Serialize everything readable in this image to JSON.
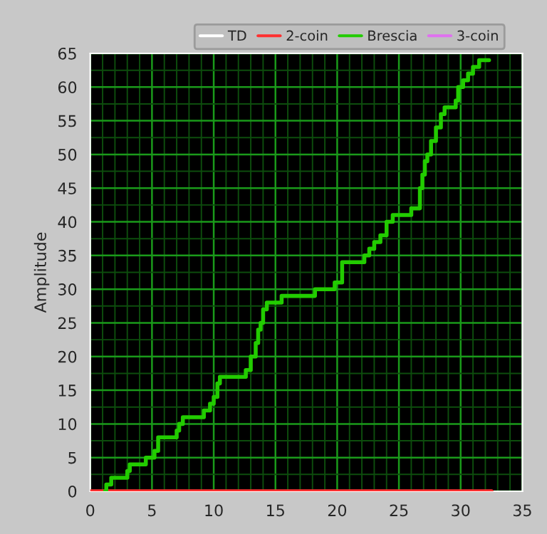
{
  "chart_data": {
    "type": "step",
    "ylabel": "Amplitude",
    "xlim": [
      0,
      35
    ],
    "ylim": [
      0,
      65
    ],
    "xticks": [
      0,
      {
        "value": 1,
        "label": null
      },
      {
        "value": 2,
        "label": null
      },
      {
        "value": 3,
        "label": null
      },
      {
        "value": 4,
        "label": null
      },
      5,
      {
        "value": 6,
        "label": null
      },
      {
        "value": 7,
        "label": null
      },
      {
        "value": 8,
        "label": null
      },
      {
        "value": 9,
        "label": null
      },
      10,
      {
        "value": 11,
        "label": null
      },
      {
        "value": 12,
        "label": null
      },
      {
        "value": 13,
        "label": null
      },
      {
        "value": 14,
        "label": null
      },
      15,
      {
        "value": 16,
        "label": null
      },
      {
        "value": 17,
        "label": null
      },
      {
        "value": 18,
        "label": null
      },
      {
        "value": 19,
        "label": null
      },
      20,
      {
        "value": 21,
        "label": null
      },
      {
        "value": 22,
        "label": null
      },
      {
        "value": 23,
        "label": null
      },
      {
        "value": 24,
        "label": null
      },
      25,
      {
        "value": 26,
        "label": null
      },
      {
        "value": 27,
        "label": null
      },
      {
        "value": 28,
        "label": null
      },
      {
        "value": 29,
        "label": null
      },
      30,
      {
        "value": 31,
        "label": null
      },
      {
        "value": 32,
        "label": null
      },
      {
        "value": 33,
        "label": null
      },
      {
        "value": 34,
        "label": null
      },
      35
    ],
    "yticks": [
      0,
      {
        "value": 2.5,
        "label": null
      },
      5,
      {
        "value": 7.5,
        "label": null
      },
      10,
      {
        "value": 12.5,
        "label": null
      },
      15,
      {
        "value": 17.5,
        "label": null
      },
      20,
      {
        "value": 22.5,
        "label": null
      },
      25,
      {
        "value": 27.5,
        "label": null
      },
      30,
      {
        "value": 32.5,
        "label": null
      },
      35,
      {
        "value": 37.5,
        "label": null
      },
      40,
      {
        "value": 42.5,
        "label": null
      },
      45,
      {
        "value": 47.5,
        "label": null
      },
      50,
      {
        "value": 52.5,
        "label": null
      },
      55,
      {
        "value": 57.5,
        "label": null
      },
      60,
      {
        "value": 62.5,
        "label": null
      },
      65
    ],
    "grid": true,
    "legend": "top",
    "series": [
      {
        "name": "TD",
        "color": "#ffffff"
      },
      {
        "name": "2-coin",
        "color": "#ff3030",
        "x": [
          0,
          32.5
        ],
        "values": [
          0,
          0
        ]
      },
      {
        "name": "Brescia",
        "color": "#22cc00",
        "x": [
          1.2,
          1.3,
          1.7,
          3,
          3.2,
          4.5,
          5.2,
          5.5,
          7,
          7.2,
          7.5,
          9.2,
          9.7,
          10,
          10.3,
          10.5,
          12.6,
          13,
          13.4,
          13.6,
          13.8,
          14,
          14.3,
          15.5,
          18.2,
          19.8,
          20.4,
          22.2,
          22.6,
          23,
          23.5,
          24,
          24.5,
          26,
          26.7,
          26.9,
          27.1,
          27.3,
          27.6,
          28,
          28.4,
          28.7,
          29.6,
          29.8,
          30.2,
          30.6,
          31,
          31.5,
          32.3
        ],
        "values": [
          0,
          1,
          2,
          3,
          4,
          5,
          6,
          8,
          9,
          10,
          11,
          12,
          13,
          14,
          16,
          17,
          18,
          20,
          22,
          24,
          25,
          27,
          28,
          29,
          30,
          31,
          34,
          35,
          36,
          37,
          38,
          40,
          41,
          42,
          45,
          47,
          49,
          50,
          52,
          54,
          56,
          57,
          58,
          60,
          61,
          62,
          63,
          64,
          64
        ]
      },
      {
        "name": "3-coin",
        "color": "#e070f0"
      }
    ]
  }
}
